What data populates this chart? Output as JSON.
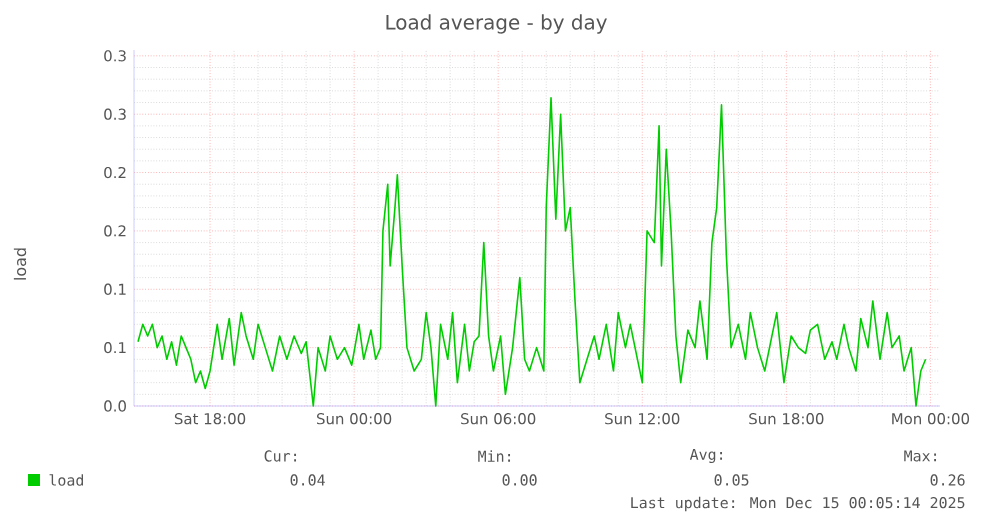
{
  "chart_data": {
    "type": "line",
    "title": "Load average - by day",
    "ylabel": "load",
    "x": [
      "2025-12-13T15:00",
      "2025-12-13T15:12",
      "2025-12-13T15:24",
      "2025-12-13T15:36",
      "2025-12-13T15:48",
      "2025-12-13T16:00",
      "2025-12-13T16:12",
      "2025-12-13T16:24",
      "2025-12-13T16:36",
      "2025-12-13T16:48",
      "2025-12-13T17:00",
      "2025-12-13T17:12",
      "2025-12-13T17:24",
      "2025-12-13T17:36",
      "2025-12-13T17:48",
      "2025-12-13T18:00",
      "2025-12-13T18:18",
      "2025-12-13T18:30",
      "2025-12-13T18:48",
      "2025-12-13T19:00",
      "2025-12-13T19:18",
      "2025-12-13T19:30",
      "2025-12-13T19:48",
      "2025-12-13T20:00",
      "2025-12-13T20:18",
      "2025-12-13T20:36",
      "2025-12-13T20:54",
      "2025-12-13T21:12",
      "2025-12-13T21:30",
      "2025-12-13T21:48",
      "2025-12-13T22:00",
      "2025-12-13T22:18",
      "2025-12-13T22:30",
      "2025-12-13T22:48",
      "2025-12-13T23:00",
      "2025-12-13T23:18",
      "2025-12-13T23:36",
      "2025-12-13T23:54",
      "2025-12-14T00:12",
      "2025-12-14T00:24",
      "2025-12-14T00:42",
      "2025-12-14T00:54",
      "2025-12-14T01:06",
      "2025-12-14T01:12",
      "2025-12-14T01:24",
      "2025-12-14T01:30",
      "2025-12-14T01:42",
      "2025-12-14T01:48",
      "2025-12-14T02:00",
      "2025-12-14T02:12",
      "2025-12-14T02:30",
      "2025-12-14T02:48",
      "2025-12-14T03:00",
      "2025-12-14T03:12",
      "2025-12-14T03:24",
      "2025-12-14T03:36",
      "2025-12-14T03:54",
      "2025-12-14T04:06",
      "2025-12-14T04:18",
      "2025-12-14T04:36",
      "2025-12-14T04:48",
      "2025-12-14T05:00",
      "2025-12-14T05:12",
      "2025-12-14T05:24",
      "2025-12-14T05:36",
      "2025-12-14T05:48",
      "2025-12-14T06:06",
      "2025-12-14T06:18",
      "2025-12-14T06:36",
      "2025-12-14T06:54",
      "2025-12-14T07:06",
      "2025-12-14T07:18",
      "2025-12-14T07:36",
      "2025-12-14T07:54",
      "2025-12-14T08:00",
      "2025-12-14T08:12",
      "2025-12-14T08:24",
      "2025-12-14T08:36",
      "2025-12-14T08:48",
      "2025-12-14T09:00",
      "2025-12-14T09:12",
      "2025-12-14T09:24",
      "2025-12-14T09:42",
      "2025-12-14T10:00",
      "2025-12-14T10:12",
      "2025-12-14T10:30",
      "2025-12-14T10:48",
      "2025-12-14T11:00",
      "2025-12-14T11:18",
      "2025-12-14T11:30",
      "2025-12-14T11:48",
      "2025-12-14T12:00",
      "2025-12-14T12:12",
      "2025-12-14T12:30",
      "2025-12-14T12:42",
      "2025-12-14T12:48",
      "2025-12-14T13:00",
      "2025-12-14T13:12",
      "2025-12-14T13:24",
      "2025-12-14T13:36",
      "2025-12-14T13:54",
      "2025-12-14T14:12",
      "2025-12-14T14:24",
      "2025-12-14T14:42",
      "2025-12-14T14:54",
      "2025-12-14T15:06",
      "2025-12-14T15:18",
      "2025-12-14T15:30",
      "2025-12-14T15:42",
      "2025-12-14T16:00",
      "2025-12-14T16:18",
      "2025-12-14T16:30",
      "2025-12-14T16:48",
      "2025-12-14T17:06",
      "2025-12-14T17:24",
      "2025-12-14T17:36",
      "2025-12-14T17:54",
      "2025-12-14T18:12",
      "2025-12-14T18:30",
      "2025-12-14T18:48",
      "2025-12-14T19:00",
      "2025-12-14T19:18",
      "2025-12-14T19:36",
      "2025-12-14T19:54",
      "2025-12-14T20:06",
      "2025-12-14T20:24",
      "2025-12-14T20:36",
      "2025-12-14T20:54",
      "2025-12-14T21:06",
      "2025-12-14T21:24",
      "2025-12-14T21:36",
      "2025-12-14T21:54",
      "2025-12-14T22:12",
      "2025-12-14T22:24",
      "2025-12-14T22:42",
      "2025-12-14T22:54",
      "2025-12-14T23:12",
      "2025-12-14T23:24",
      "2025-12-14T23:36",
      "2025-12-14T23:48"
    ],
    "series": [
      {
        "name": "load",
        "color": "#00cc00",
        "values": [
          0.055,
          0.07,
          0.06,
          0.07,
          0.05,
          0.06,
          0.04,
          0.055,
          0.035,
          0.06,
          0.05,
          0.04,
          0.02,
          0.03,
          0.015,
          0.03,
          0.07,
          0.04,
          0.075,
          0.035,
          0.08,
          0.06,
          0.04,
          0.07,
          0.05,
          0.03,
          0.06,
          0.04,
          0.06,
          0.045,
          0.055,
          0.0,
          0.05,
          0.03,
          0.06,
          0.04,
          0.05,
          0.035,
          0.07,
          0.04,
          0.065,
          0.04,
          0.05,
          0.15,
          0.19,
          0.12,
          0.17,
          0.198,
          0.12,
          0.05,
          0.03,
          0.04,
          0.08,
          0.05,
          0.0,
          0.07,
          0.04,
          0.08,
          0.02,
          0.07,
          0.03,
          0.055,
          0.06,
          0.14,
          0.06,
          0.03,
          0.06,
          0.01,
          0.05,
          0.11,
          0.04,
          0.03,
          0.05,
          0.03,
          0.17,
          0.264,
          0.16,
          0.25,
          0.15,
          0.17,
          0.09,
          0.02,
          0.04,
          0.06,
          0.04,
          0.07,
          0.03,
          0.08,
          0.05,
          0.07,
          0.04,
          0.02,
          0.15,
          0.14,
          0.24,
          0.12,
          0.22,
          0.15,
          0.06,
          0.02,
          0.065,
          0.05,
          0.09,
          0.04,
          0.14,
          0.17,
          0.258,
          0.13,
          0.05,
          0.07,
          0.04,
          0.08,
          0.05,
          0.03,
          0.06,
          0.08,
          0.02,
          0.06,
          0.05,
          0.045,
          0.065,
          0.07,
          0.04,
          0.055,
          0.04,
          0.07,
          0.05,
          0.03,
          0.075,
          0.05,
          0.09,
          0.04,
          0.08,
          0.05,
          0.06,
          0.03,
          0.05,
          0.0,
          0.03,
          0.04
        ]
      }
    ],
    "xlim": [
      "2025-12-13T14:50",
      "2025-12-15T00:24"
    ],
    "xticks": [
      {
        "value": "2025-12-13T18:00",
        "label": "Sat 18:00"
      },
      {
        "value": "2025-12-14T00:00",
        "label": "Sun 00:00"
      },
      {
        "value": "2025-12-14T06:00",
        "label": "Sun 06:00"
      },
      {
        "value": "2025-12-14T12:00",
        "label": "Sun 12:00"
      },
      {
        "value": "2025-12-14T18:00",
        "label": "Sun 18:00"
      },
      {
        "value": "2025-12-15T00:00",
        "label": "Mon 00:00"
      }
    ],
    "ylim": [
      0,
      0.305
    ],
    "yticks": [
      {
        "value": 0,
        "label": "0.0"
      },
      {
        "value": 0.05,
        "label": "0.1"
      },
      {
        "value": 0.1,
        "label": "0.1"
      },
      {
        "value": 0.15,
        "label": "0.2"
      },
      {
        "value": 0.2,
        "label": "0.2"
      },
      {
        "value": 0.25,
        "label": "0.3"
      },
      {
        "value": 0.3,
        "label": "0.3"
      }
    ],
    "grid": true,
    "legend": "bottom",
    "annotations": [
      "Cur:",
      "0.04",
      "Min:",
      "0.00",
      "Avg:",
      "0.05",
      "Max:",
      "0.26",
      "Last update: Mon Dec 15 00:05:14 2025"
    ]
  }
}
